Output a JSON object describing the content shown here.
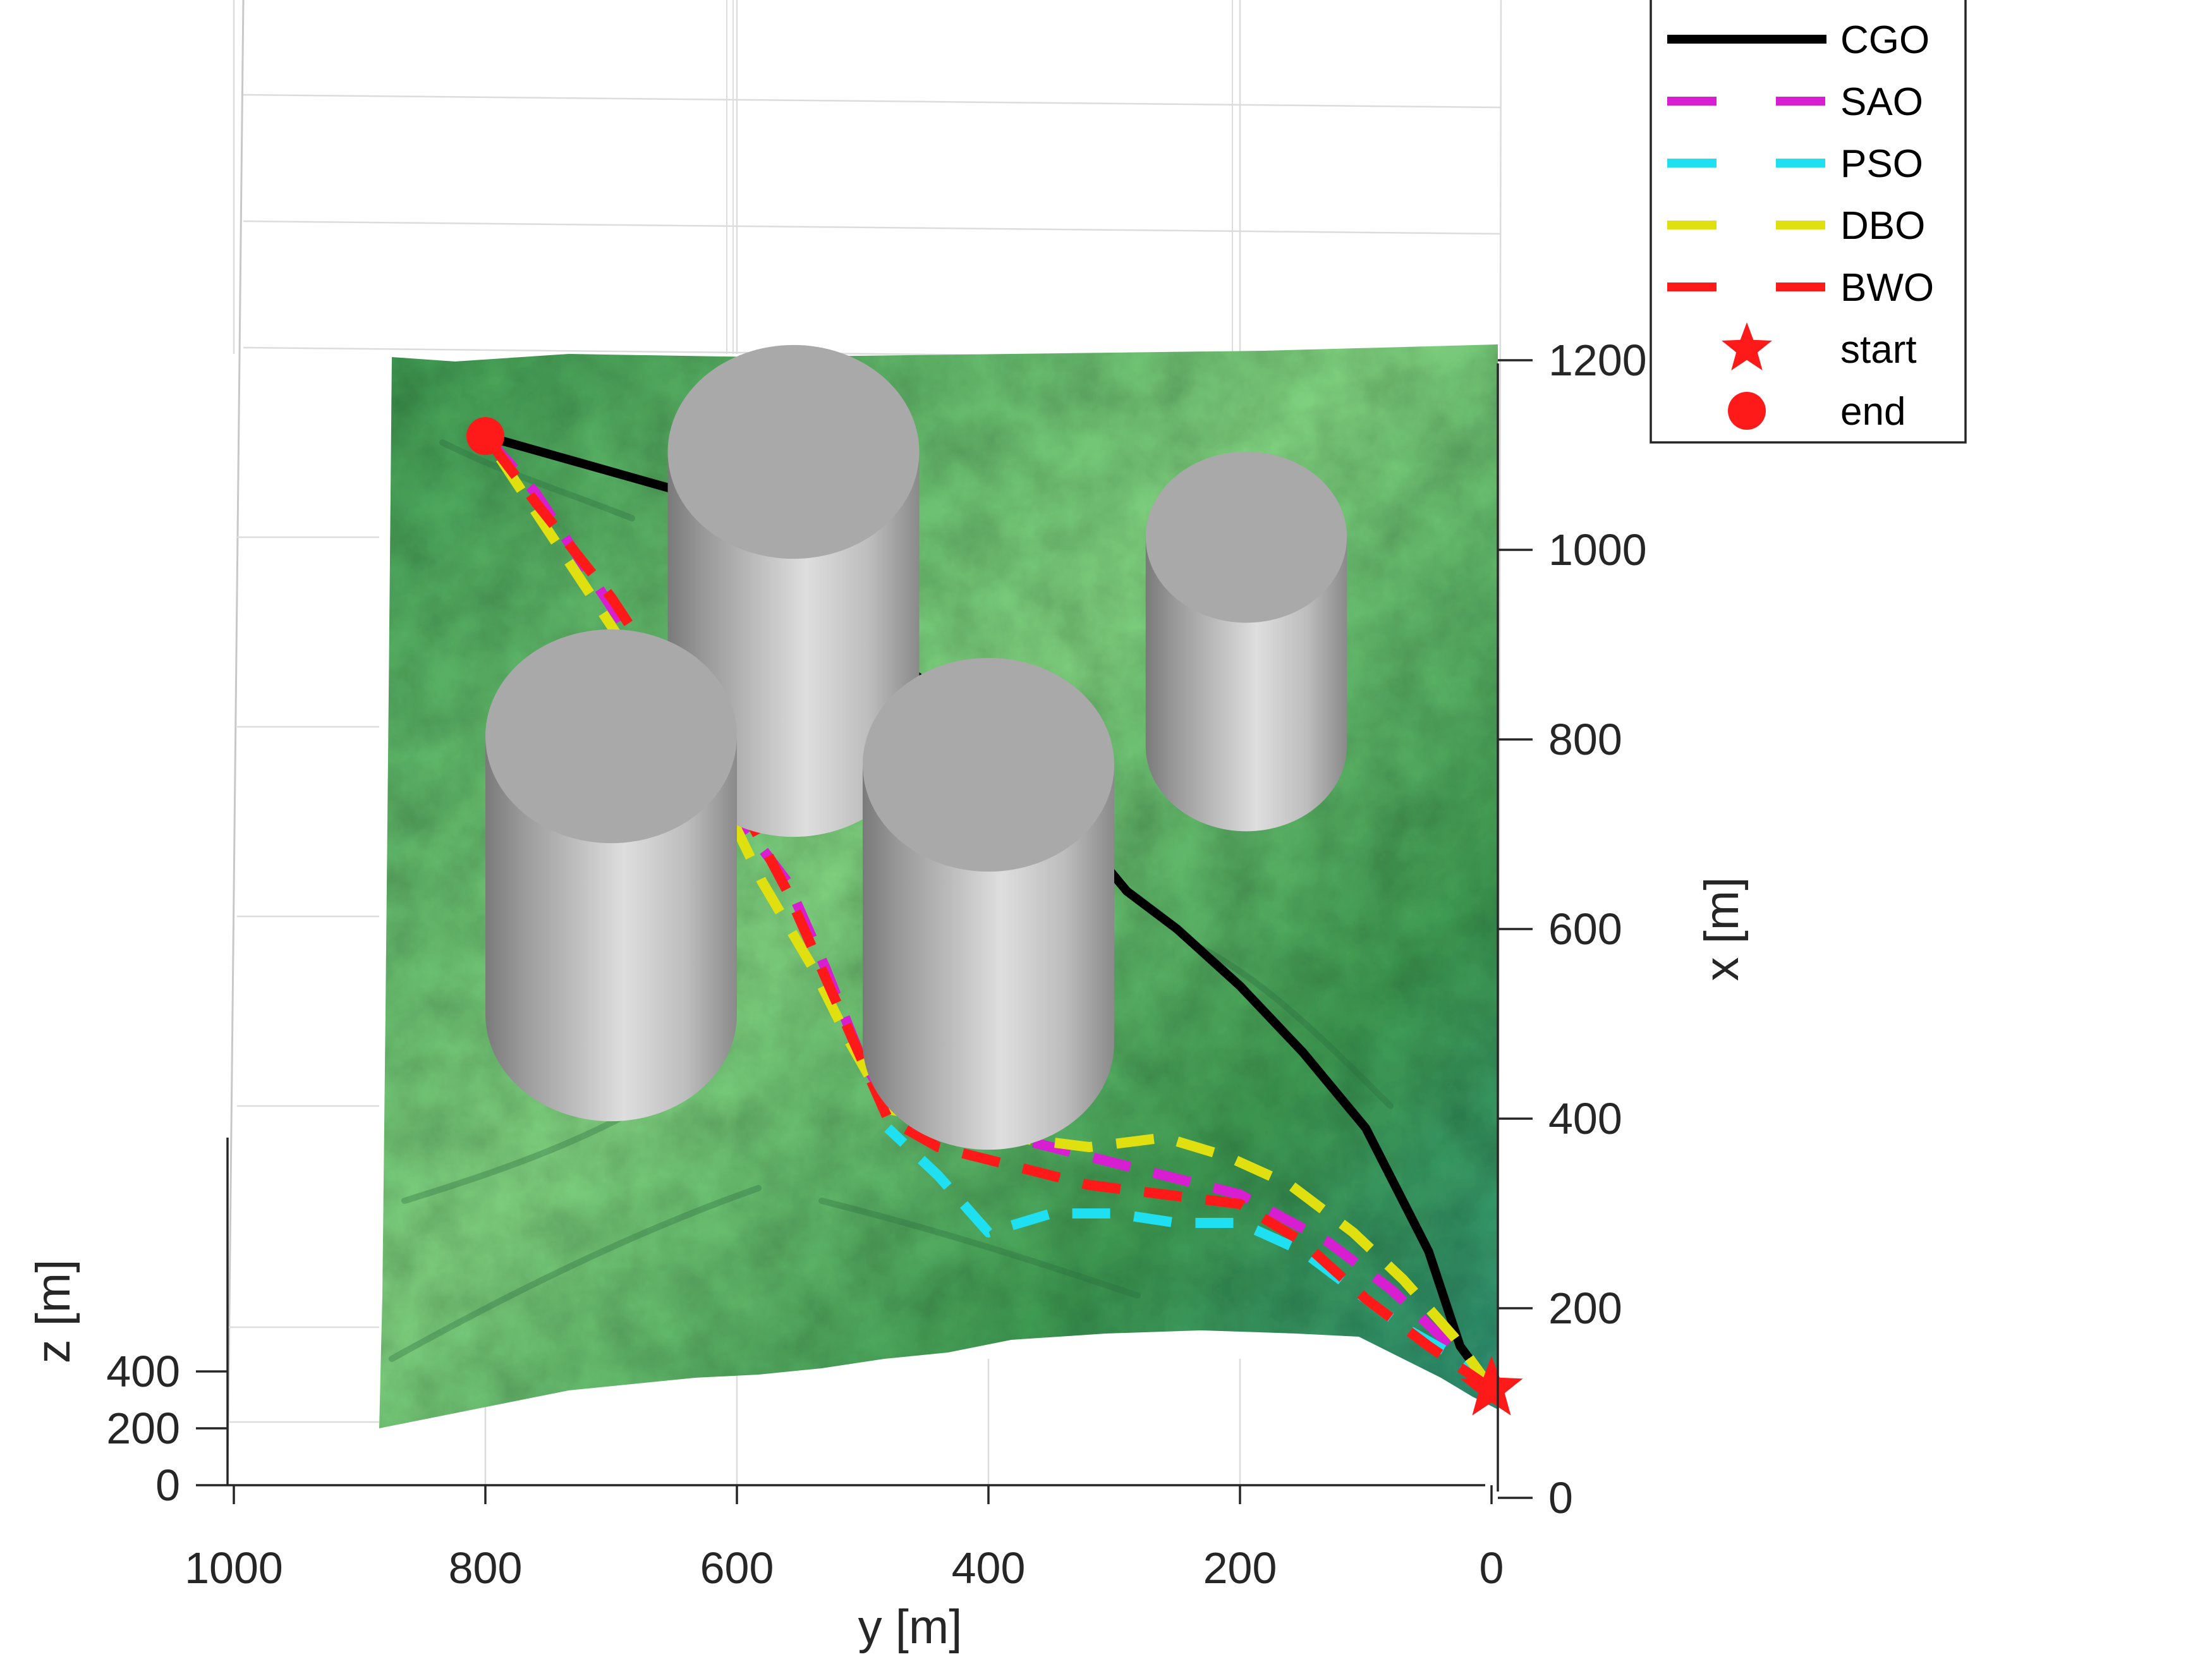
{
  "chart_data": {
    "type": "line",
    "projection": "3d-top-view",
    "xlabel": "y [m]",
    "ylabel": "x [m]",
    "zlabel": "z [m]",
    "y_axis_ticks": [
      "1000",
      "800",
      "600",
      "400",
      "200",
      "0"
    ],
    "x_axis_ticks": [
      "0",
      "200",
      "400",
      "600",
      "800",
      "1000",
      "1200"
    ],
    "z_axis_ticks": [
      "0",
      "200",
      "400"
    ],
    "xlim": [
      0,
      1200
    ],
    "ylim": [
      0,
      1000
    ],
    "legend_position": "top-right",
    "grid": true,
    "colors": {
      "terrain_light": "#7fd07f",
      "terrain_mid": "#3f9a52",
      "terrain_dark": "#2a6e40",
      "terrain_teal": "#2f8f74",
      "obstacle": "#a6a6a6",
      "obstacle_top": "#a9a9a9"
    },
    "obstacles": [
      {
        "y": 555,
        "x": 950,
        "radius": 100
      },
      {
        "y": 700,
        "x": 650,
        "radius": 100
      },
      {
        "y": 400,
        "x": 620,
        "radius": 100
      },
      {
        "y": 195,
        "x": 860,
        "radius": 80
      }
    ],
    "start": {
      "y": 0,
      "x": 115
    },
    "end": {
      "y": 800,
      "x": 1120
    },
    "series": [
      {
        "name": "CGO",
        "color": "#000000",
        "dash": "solid",
        "points": [
          [
            0,
            115
          ],
          [
            25,
            160
          ],
          [
            50,
            260
          ],
          [
            100,
            390
          ],
          [
            150,
            470
          ],
          [
            200,
            540
          ],
          [
            250,
            600
          ],
          [
            290,
            640
          ],
          [
            340,
            720
          ],
          [
            400,
            790
          ],
          [
            450,
            860
          ],
          [
            500,
            910
          ],
          [
            560,
            1000
          ],
          [
            640,
            1060
          ],
          [
            800,
            1120
          ]
        ]
      },
      {
        "name": "SAO",
        "color": "#d71fd1",
        "dash": "dashed",
        "points": [
          [
            0,
            115
          ],
          [
            40,
            170
          ],
          [
            80,
            220
          ],
          [
            130,
            270
          ],
          [
            200,
            320
          ],
          [
            260,
            340
          ],
          [
            320,
            360
          ],
          [
            380,
            380
          ],
          [
            440,
            390
          ],
          [
            480,
            420
          ],
          [
            500,
            460
          ],
          [
            530,
            560
          ],
          [
            560,
            650
          ],
          [
            600,
            720
          ],
          [
            640,
            820
          ],
          [
            700,
            940
          ],
          [
            760,
            1060
          ],
          [
            800,
            1120
          ]
        ]
      },
      {
        "name": "PSO",
        "color": "#1fe0f0",
        "dash": "dashed",
        "points": [
          [
            0,
            115
          ],
          [
            30,
            150
          ],
          [
            70,
            180
          ],
          [
            110,
            220
          ],
          [
            150,
            260
          ],
          [
            200,
            290
          ],
          [
            250,
            290
          ],
          [
            300,
            300
          ],
          [
            350,
            300
          ],
          [
            400,
            280
          ],
          [
            440,
            340
          ],
          [
            480,
            390
          ]
        ]
      },
      {
        "name": "DBO",
        "color": "#e0e010",
        "dash": "dashed",
        "points": [
          [
            0,
            115
          ],
          [
            30,
            170
          ],
          [
            70,
            230
          ],
          [
            110,
            280
          ],
          [
            160,
            330
          ],
          [
            210,
            360
          ],
          [
            260,
            380
          ],
          [
            320,
            370
          ],
          [
            380,
            380
          ],
          [
            440,
            400
          ],
          [
            480,
            410
          ],
          [
            510,
            480
          ],
          [
            540,
            560
          ],
          [
            580,
            650
          ],
          [
            620,
            760
          ],
          [
            680,
            880
          ],
          [
            740,
            1000
          ],
          [
            800,
            1120
          ]
        ]
      },
      {
        "name": "BWO",
        "color": "#ff1a1a",
        "dash": "dashed",
        "points": [
          [
            0,
            115
          ],
          [
            50,
            160
          ],
          [
            100,
            210
          ],
          [
            150,
            270
          ],
          [
            200,
            310
          ],
          [
            260,
            320
          ],
          [
            320,
            330
          ],
          [
            380,
            350
          ],
          [
            440,
            370
          ],
          [
            480,
            400
          ],
          [
            500,
            460
          ],
          [
            530,
            550
          ],
          [
            560,
            640
          ],
          [
            600,
            740
          ],
          [
            650,
            850
          ],
          [
            700,
            950
          ],
          [
            760,
            1050
          ],
          [
            800,
            1120
          ]
        ]
      }
    ],
    "markers": [
      {
        "name": "start",
        "color": "#ff1a1a",
        "shape": "star"
      },
      {
        "name": "end",
        "color": "#ff1a1a",
        "shape": "circle"
      }
    ]
  }
}
